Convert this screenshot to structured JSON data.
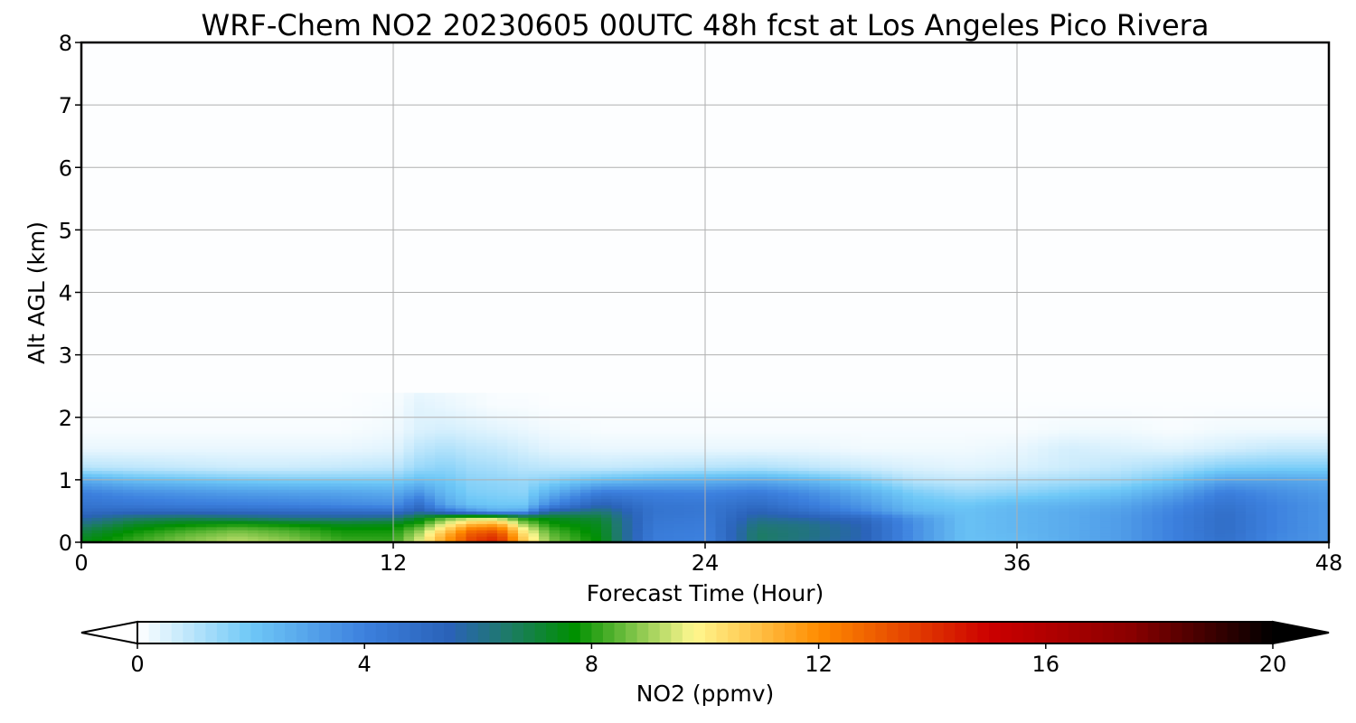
{
  "chart_data": {
    "type": "heatmap",
    "title": "WRF-Chem NO2  20230605 00UTC 48h fcst at Los Angeles Pico Rivera",
    "xlabel": "Forecast Time (Hour)",
    "ylabel": "Alt AGL (km)",
    "xlim": [
      0,
      48
    ],
    "ylim": [
      0,
      8
    ],
    "x_ticks": [
      0,
      12,
      24,
      36,
      48
    ],
    "y_ticks": [
      0,
      1,
      2,
      3,
      4,
      5,
      6,
      7,
      8
    ],
    "grid": true,
    "colorbar": {
      "label": "NO2  (ppmv)",
      "range": [
        0,
        20
      ],
      "ticks": [
        0,
        4,
        8,
        12,
        16,
        20
      ],
      "extend": "both",
      "stops": [
        {
          "v": 0,
          "c": "#ffffff"
        },
        {
          "v": 2,
          "c": "#6ec8f7"
        },
        {
          "v": 4,
          "c": "#3c80de"
        },
        {
          "v": 5.5,
          "c": "#2a62b8"
        },
        {
          "v": 6.5,
          "c": "#1e7a6a"
        },
        {
          "v": 7.7,
          "c": "#009000"
        },
        {
          "v": 9.8,
          "c": "#fff890"
        },
        {
          "v": 12,
          "c": "#ff8c00"
        },
        {
          "v": 15,
          "c": "#cc0000"
        },
        {
          "v": 17.5,
          "c": "#8a0000"
        },
        {
          "v": 20,
          "c": "#000000"
        }
      ]
    },
    "x_hours": [
      0,
      2,
      4,
      6,
      8,
      10,
      12,
      13,
      14,
      15,
      16,
      17,
      18,
      20,
      22,
      24,
      26,
      28,
      30,
      32,
      34,
      36,
      38,
      40,
      42,
      44,
      46,
      48
    ],
    "z_km": [
      0,
      0.1,
      0.2,
      0.3,
      0.4,
      0.5,
      0.6,
      0.8,
      1.0,
      1.2,
      1.5,
      1.8,
      2.2,
      3.0,
      8.0
    ],
    "no2_ppmv": [
      [
        7.5,
        8.2,
        8.8,
        9.3,
        9.0,
        8.3,
        8.2,
        9.6,
        11.6,
        13.6,
        14.4,
        11.0,
        8.8,
        7.6,
        4.2,
        4.0,
        6.5,
        6.0,
        5.5,
        3.6,
        2.2,
        2.4,
        2.8,
        3.2,
        4.0,
        4.8,
        3.8,
        3.4
      ],
      [
        7.2,
        8.0,
        8.6,
        9.0,
        8.6,
        8.0,
        8.0,
        9.3,
        11.4,
        13.3,
        14.0,
        10.6,
        8.6,
        7.5,
        4.2,
        4.0,
        6.6,
        6.2,
        5.6,
        3.6,
        2.2,
        2.4,
        2.8,
        3.2,
        4.0,
        4.8,
        3.8,
        3.4
      ],
      [
        6.8,
        7.7,
        8.2,
        8.6,
        8.3,
        7.8,
        7.8,
        8.8,
        10.6,
        12.6,
        13.0,
        10.0,
        8.3,
        7.4,
        4.3,
        4.1,
        6.5,
        6.2,
        5.6,
        3.6,
        2.2,
        2.5,
        2.8,
        3.2,
        4.0,
        4.9,
        3.9,
        3.4
      ],
      [
        6.2,
        7.2,
        7.6,
        7.8,
        7.6,
        7.3,
        7.4,
        8.0,
        9.6,
        11.0,
        11.4,
        9.0,
        7.8,
        7.3,
        4.4,
        4.2,
        6.3,
        6.1,
        5.5,
        3.6,
        2.2,
        2.5,
        2.8,
        3.2,
        4.0,
        4.9,
        3.9,
        3.4
      ],
      [
        5.6,
        6.4,
        6.6,
        6.4,
        6.1,
        6.0,
        6.2,
        7.2,
        8.4,
        9.0,
        9.0,
        7.8,
        7.4,
        7.0,
        4.5,
        4.3,
        5.9,
        5.6,
        5.1,
        3.4,
        2.2,
        2.5,
        2.8,
        3.2,
        4.0,
        4.9,
        3.9,
        3.4
      ],
      [
        5.0,
        5.2,
        5.2,
        5.1,
        5.0,
        4.9,
        4.8,
        5.6,
        4.6,
        3.6,
        2.8,
        3.0,
        5.8,
        6.4,
        4.6,
        4.4,
        5.5,
        4.8,
        3.8,
        2.5,
        2.2,
        2.5,
        2.8,
        3.1,
        3.9,
        4.8,
        3.9,
        3.4
      ],
      [
        4.6,
        4.4,
        4.2,
        4.1,
        4.0,
        3.8,
        3.6,
        4.8,
        3.0,
        2.2,
        2.0,
        2.0,
        3.8,
        5.6,
        4.5,
        4.4,
        5.0,
        4.2,
        3.4,
        2.3,
        2.0,
        2.4,
        2.6,
        2.9,
        3.7,
        4.6,
        3.9,
        3.4
      ],
      [
        4.0,
        3.6,
        3.4,
        3.2,
        3.1,
        3.0,
        2.8,
        3.4,
        2.4,
        1.8,
        1.7,
        1.6,
        2.6,
        4.2,
        4.0,
        3.9,
        4.2,
        3.6,
        2.8,
        1.8,
        1.4,
        1.6,
        1.9,
        2.2,
        3.0,
        4.1,
        3.6,
        3.2
      ],
      [
        2.8,
        2.3,
        2.1,
        1.9,
        1.8,
        1.8,
        1.8,
        2.2,
        2.0,
        1.6,
        1.5,
        1.4,
        1.6,
        2.2,
        2.5,
        2.6,
        2.8,
        2.4,
        1.8,
        1.0,
        0.8,
        1.0,
        1.2,
        1.4,
        2.0,
        3.0,
        3.0,
        2.8
      ],
      [
        1.0,
        0.9,
        0.8,
        0.7,
        0.7,
        0.8,
        0.9,
        1.4,
        1.6,
        1.3,
        1.2,
        1.0,
        0.9,
        0.8,
        0.9,
        1.0,
        1.1,
        0.9,
        0.7,
        0.5,
        0.4,
        0.5,
        0.7,
        0.9,
        1.2,
        1.7,
        1.8,
        1.8
      ],
      [
        0.3,
        0.3,
        0.3,
        0.3,
        0.3,
        0.3,
        0.4,
        0.9,
        1.1,
        0.9,
        0.8,
        0.6,
        0.4,
        0.3,
        0.3,
        0.3,
        0.3,
        0.3,
        0.2,
        0.2,
        0.2,
        0.3,
        0.6,
        0.5,
        0.4,
        0.6,
        0.8,
        0.8
      ],
      [
        0.1,
        0.1,
        0.1,
        0.1,
        0.1,
        0.1,
        0.2,
        0.5,
        0.6,
        0.5,
        0.4,
        0.3,
        0.2,
        0.1,
        0.1,
        0.1,
        0.1,
        0.1,
        0.1,
        0.1,
        0.1,
        0.1,
        0.2,
        0.2,
        0.1,
        0.2,
        0.2,
        0.2
      ],
      [
        0.05,
        0.05,
        0.05,
        0.05,
        0.05,
        0.05,
        0.1,
        0.4,
        0.3,
        0.2,
        0.1,
        0.1,
        0.05,
        0.05,
        0.05,
        0.05,
        0.05,
        0.05,
        0.05,
        0.05,
        0.05,
        0.05,
        0.05,
        0.05,
        0.05,
        0.05,
        0.05,
        0.05
      ],
      [
        0.03,
        0.03,
        0.03,
        0.03,
        0.03,
        0.03,
        0.03,
        0.03,
        0.03,
        0.03,
        0.03,
        0.03,
        0.03,
        0.03,
        0.03,
        0.03,
        0.03,
        0.03,
        0.03,
        0.03,
        0.03,
        0.03,
        0.03,
        0.03,
        0.03,
        0.03,
        0.03,
        0.03
      ],
      [
        0.02,
        0.02,
        0.02,
        0.02,
        0.02,
        0.02,
        0.02,
        0.02,
        0.02,
        0.02,
        0.02,
        0.02,
        0.02,
        0.02,
        0.02,
        0.02,
        0.02,
        0.02,
        0.02,
        0.02,
        0.02,
        0.02,
        0.02,
        0.02,
        0.02,
        0.02,
        0.02,
        0.02
      ]
    ]
  }
}
